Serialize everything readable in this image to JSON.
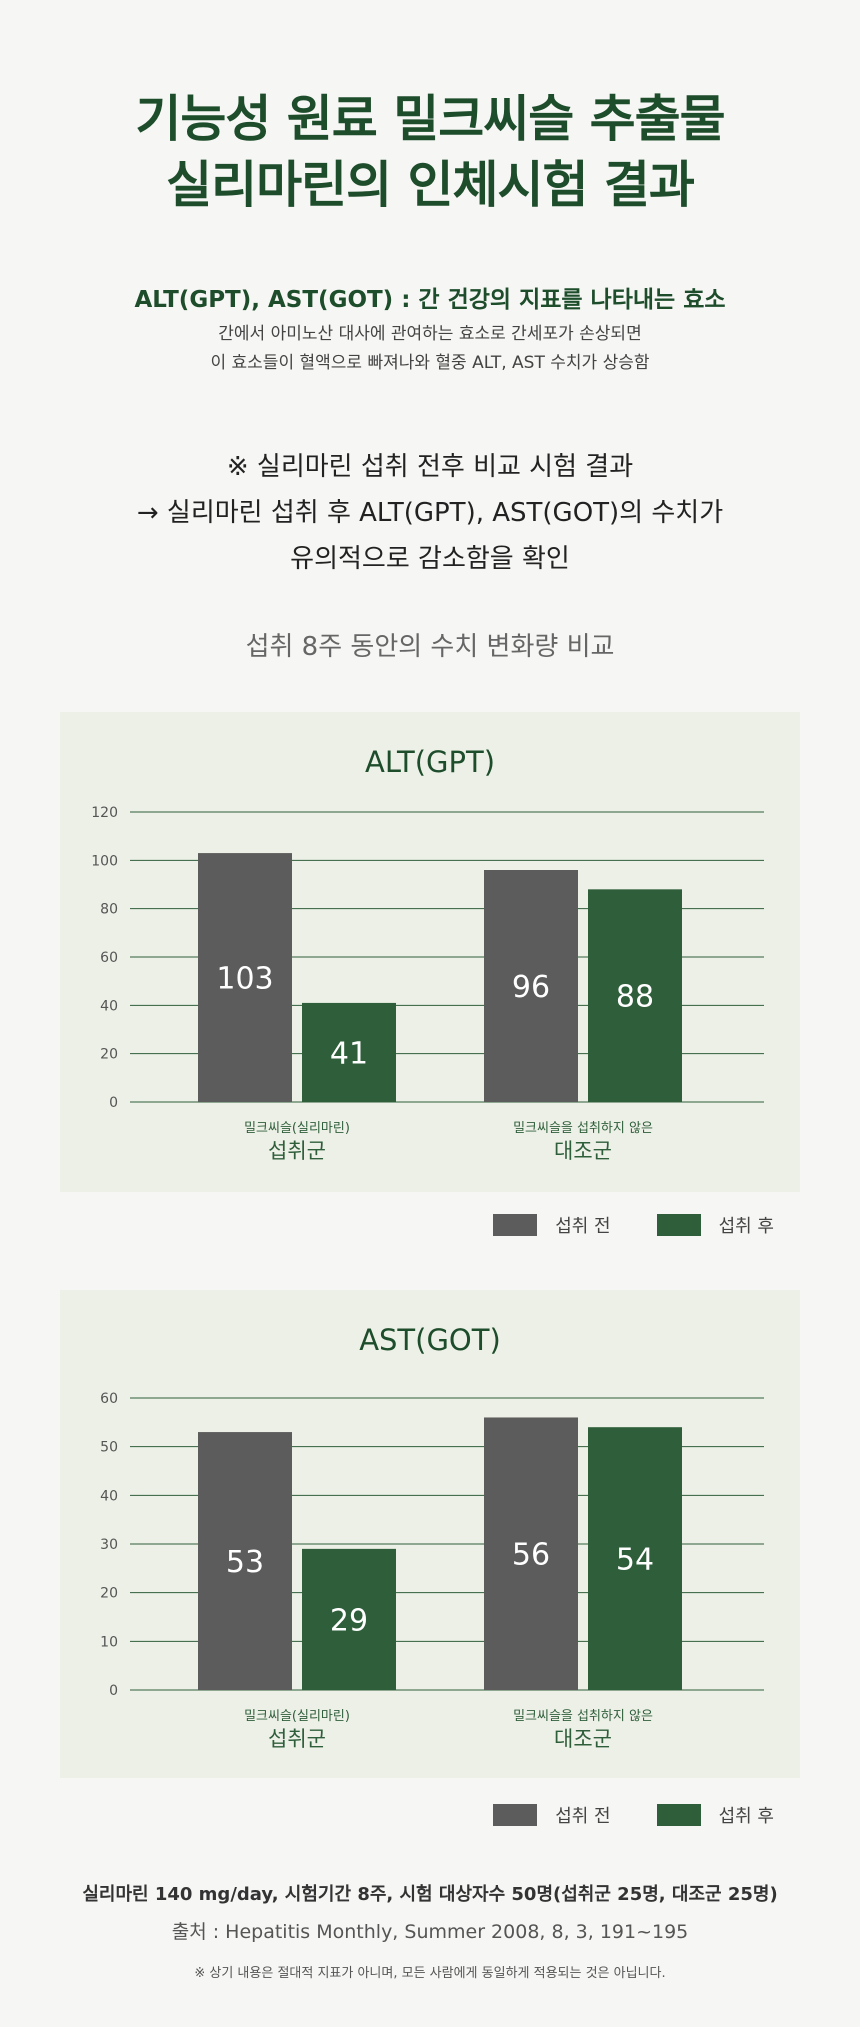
{
  "header": {
    "title_line1": "기능성 원료 밀크씨슬 추출물",
    "title_line2": "실리마린의 인체시험 결과"
  },
  "definition": {
    "heading": "ALT(GPT), AST(GOT) : 간 건강의 지표를 나타내는 효소",
    "line1": "간에서 아미노산 대사에 관여하는 효소로 간세포가 손상되면",
    "line2": "이 효소들이 혈액으로 빠져나와 혈중 ALT, AST 수치가 상승함"
  },
  "summary": {
    "line1": "※ 실리마린 섭취 전후 비교 시험 결과",
    "line2": "→ 실리마린 섭취 후 ALT(GPT), AST(GOT)의 수치가",
    "line3": "유의적으로 감소함을 확인"
  },
  "section_subtitle": "섭취 8주 동안의 수치 변화량 비교",
  "colors": {
    "before": "#5c5c5c",
    "after": "#2e5e3a",
    "panel": "#edf0e7",
    "grid": "#2e5e3a",
    "title": "#1d4d2b"
  },
  "legend": {
    "before": "섭취 전",
    "after": "섭취 후"
  },
  "chart_data": [
    {
      "type": "bar",
      "title": "ALT(GPT)",
      "categories": [
        {
          "sub": "밀크씨슬(실리마린)",
          "main": "섭취군"
        },
        {
          "sub": "밀크씨슬을 섭취하지 않은",
          "main": "대조군"
        }
      ],
      "series": [
        {
          "name": "섭취 전",
          "values": [
            103,
            96
          ]
        },
        {
          "name": "섭취 후",
          "values": [
            41,
            88
          ]
        }
      ],
      "ylim": [
        0,
        120
      ],
      "yticks": [
        0,
        20,
        40,
        60,
        80,
        100,
        120
      ],
      "grid": true,
      "legend_position": "bottom-right"
    },
    {
      "type": "bar",
      "title": "AST(GOT)",
      "categories": [
        {
          "sub": "밀크씨슬(실리마린)",
          "main": "섭취군"
        },
        {
          "sub": "밀크씨슬을 섭취하지 않은",
          "main": "대조군"
        }
      ],
      "series": [
        {
          "name": "섭취 전",
          "values": [
            53,
            56
          ]
        },
        {
          "name": "섭취 후",
          "values": [
            29,
            54
          ]
        }
      ],
      "ylim": [
        0,
        60
      ],
      "yticks": [
        0,
        10,
        20,
        30,
        40,
        50,
        60
      ],
      "grid": true,
      "legend_position": "bottom-right"
    }
  ],
  "footer": {
    "condition": "실리마린 140 mg/day, 시험기간 8주, 시험 대상자수 50명(섭취군 25명, 대조군 25명)",
    "source": "출처 : Hepatitis Monthly, Summer 2008, 8, 3, 191~195",
    "disclaimer": "※ 상기 내용은 절대적 지표가 아니며, 모든 사람에게 동일하게 적용되는 것은 아닙니다."
  }
}
